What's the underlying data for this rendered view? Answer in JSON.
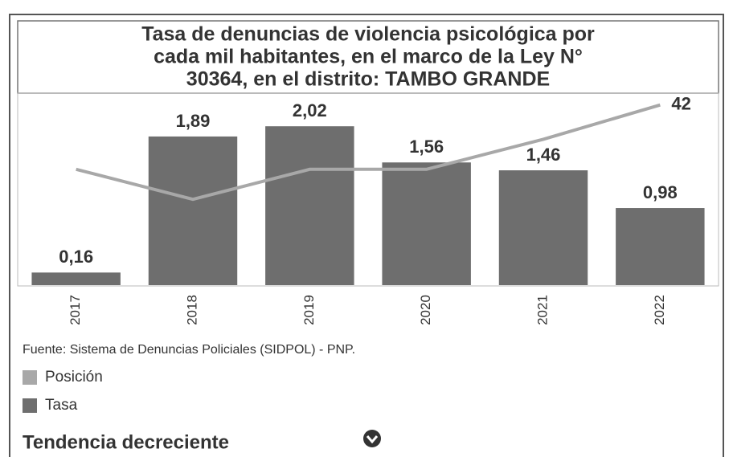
{
  "chart_data": {
    "type": "bar",
    "title": [
      "Tasa de denuncias de violencia psicológica por",
      "cada mil habitantes, en el marco de la Ley N°",
      "30364, en el distrito: TAMBO GRANDE"
    ],
    "categories": [
      "2017",
      "2018",
      "2019",
      "2020",
      "2021",
      "2022"
    ],
    "series": [
      {
        "name": "Posición",
        "color": "#a8a8a8",
        "type": "line",
        "axis": "y2",
        "values": [
          27,
          20,
          27,
          27,
          34,
          42
        ],
        "value_labels": [
          null,
          null,
          null,
          null,
          null,
          "42"
        ]
      },
      {
        "name": "Tasa",
        "color": "#6e6e6e",
        "type": "bar",
        "values": [
          0.16,
          1.89,
          2.02,
          1.56,
          1.46,
          0.98
        ],
        "value_labels": [
          "0,16",
          "1,89",
          "2,02",
          "1,56",
          "1,46",
          "0,98"
        ]
      }
    ],
    "ylim": [
      0,
      2.4
    ],
    "y2lim": [
      0,
      44
    ],
    "source": "Fuente: Sistema de Denuncias Policiales (SIDPOL) - PNP.",
    "trend": "Tendencia decreciente"
  }
}
